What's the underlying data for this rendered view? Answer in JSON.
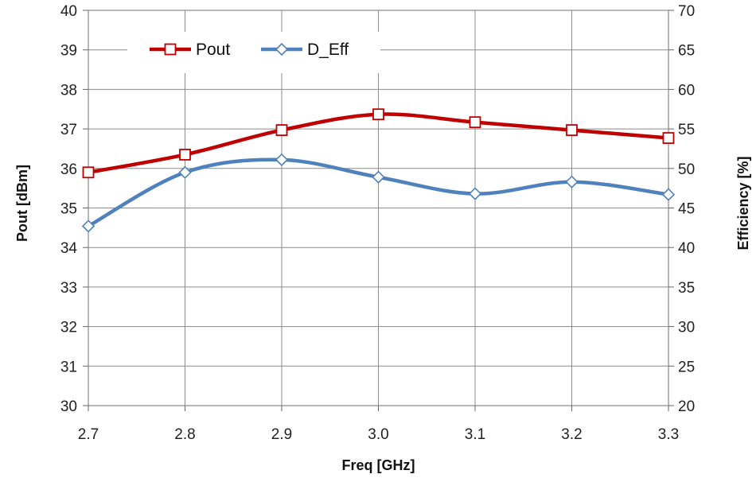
{
  "chart_data": {
    "type": "line",
    "title": "",
    "xlabel": "Freq [GHz]",
    "ylabel_left": "Pout [dBm]",
    "ylabel_right": "Efficiency [%]",
    "x": [
      2.7,
      2.8,
      2.9,
      3.0,
      3.1,
      3.2,
      3.3
    ],
    "x_tick_labels": [
      "2.7",
      "2.8",
      "2.9",
      "3.0",
      "3.1",
      "3.2",
      "3.3"
    ],
    "xlim": [
      2.7,
      3.3
    ],
    "ylim_left": [
      30,
      40
    ],
    "ylim_right": [
      20,
      70
    ],
    "y_left_ticks": [
      "30",
      "31",
      "32",
      "33",
      "34",
      "35",
      "36",
      "37",
      "38",
      "39",
      "40"
    ],
    "y_right_ticks": [
      "20",
      "25",
      "30",
      "35",
      "40",
      "45",
      "50",
      "55",
      "60",
      "65",
      "70"
    ],
    "grid": true,
    "legend_position": "top-left",
    "series": [
      {
        "name": "Pout",
        "axis": "left",
        "color": "#C00000",
        "marker": "square",
        "values": [
          35.9,
          36.35,
          36.97,
          37.37,
          37.17,
          36.97,
          36.77
        ]
      },
      {
        "name": "D_Eff",
        "axis": "right",
        "color": "#4F81BD",
        "marker": "diamond",
        "values": [
          42.7,
          49.5,
          51.1,
          48.9,
          46.8,
          48.3,
          46.7
        ]
      }
    ]
  }
}
